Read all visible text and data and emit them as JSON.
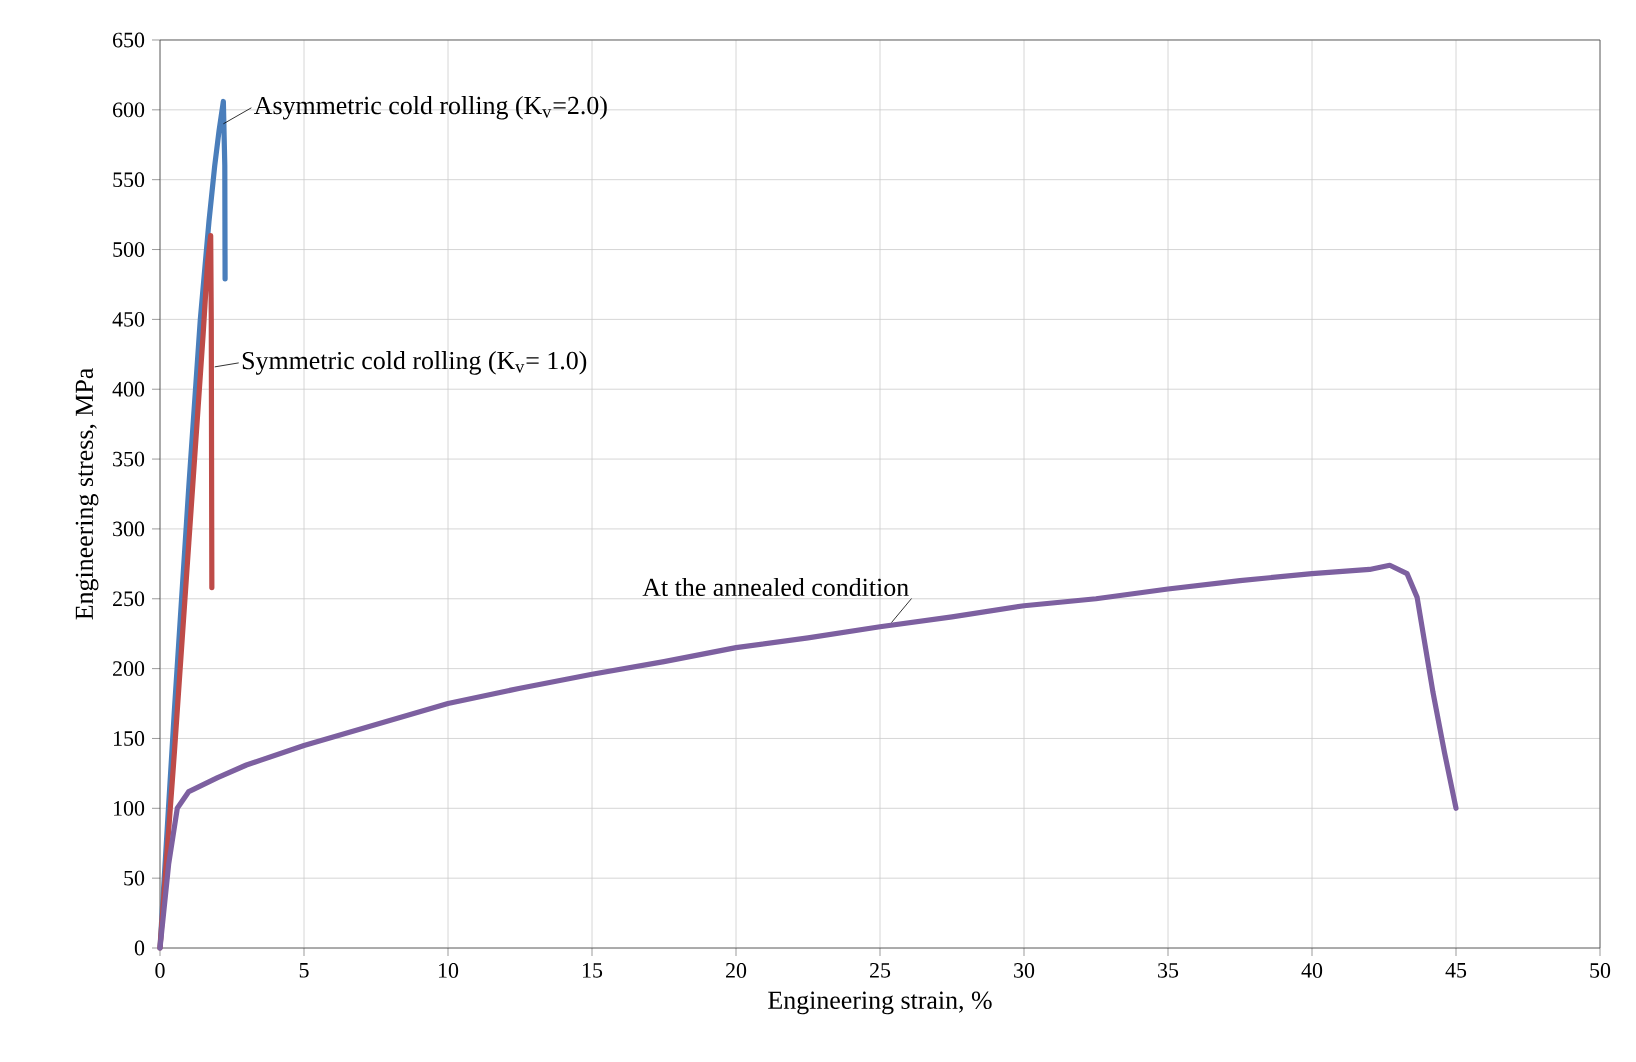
{
  "chart_data": {
    "type": "line",
    "xlabel": "Engineering strain, %",
    "ylabel": "Engineering stress, MPa",
    "xlim": [
      0,
      50
    ],
    "ylim": [
      0,
      650
    ],
    "xticks": [
      0,
      5,
      10,
      15,
      20,
      25,
      30,
      35,
      40,
      45,
      50
    ],
    "yticks": [
      0,
      50,
      100,
      150,
      200,
      250,
      300,
      350,
      400,
      450,
      500,
      550,
      600,
      650
    ],
    "grid": true,
    "marker": "none",
    "line_style": "solid",
    "series": [
      {
        "color": "#4a7ebb",
        "x": [
          0,
          0.5,
          1.0,
          1.4,
          1.7,
          1.9,
          2.05,
          2.2,
          2.25,
          2.26
        ],
        "values": [
          0,
          170,
          330,
          450,
          520,
          560,
          585,
          606,
          560,
          479
        ]
      },
      {
        "color": "#be4b48",
        "x": [
          0,
          0.5,
          1.0,
          1.3,
          1.5,
          1.65,
          1.76,
          1.78,
          1.8
        ],
        "values": [
          0,
          140,
          290,
          380,
          440,
          490,
          510,
          450,
          258
        ]
      },
      {
        "color": "#7d60a0",
        "x": [
          0,
          0.3,
          0.6,
          1,
          2,
          3,
          5,
          7.5,
          10,
          12.5,
          15,
          17.5,
          20,
          22.5,
          25,
          27.5,
          30,
          32.5,
          35,
          37.5,
          40,
          42,
          42.7,
          43.3,
          43.65,
          44.2,
          44.6,
          45.0
        ],
        "values": [
          0,
          60,
          100,
          112,
          122,
          131,
          145,
          160,
          175,
          186,
          196,
          205,
          215,
          222,
          230,
          237,
          245,
          250,
          257,
          263,
          268,
          271,
          274,
          268,
          251,
          183,
          140,
          100
        ]
      }
    ],
    "annotations": [
      {
        "text": "Asymmetric cold rolling (K$_{v}$=2.0)",
        "x": 2.2,
        "y": 590
      },
      {
        "text": "Symmetric cold rolling (K$_{v}$= 1.0)",
        "x": 1.9,
        "y": 416
      },
      {
        "text": "At the annealed condition",
        "x": 25.4,
        "y": 233
      }
    ]
  }
}
